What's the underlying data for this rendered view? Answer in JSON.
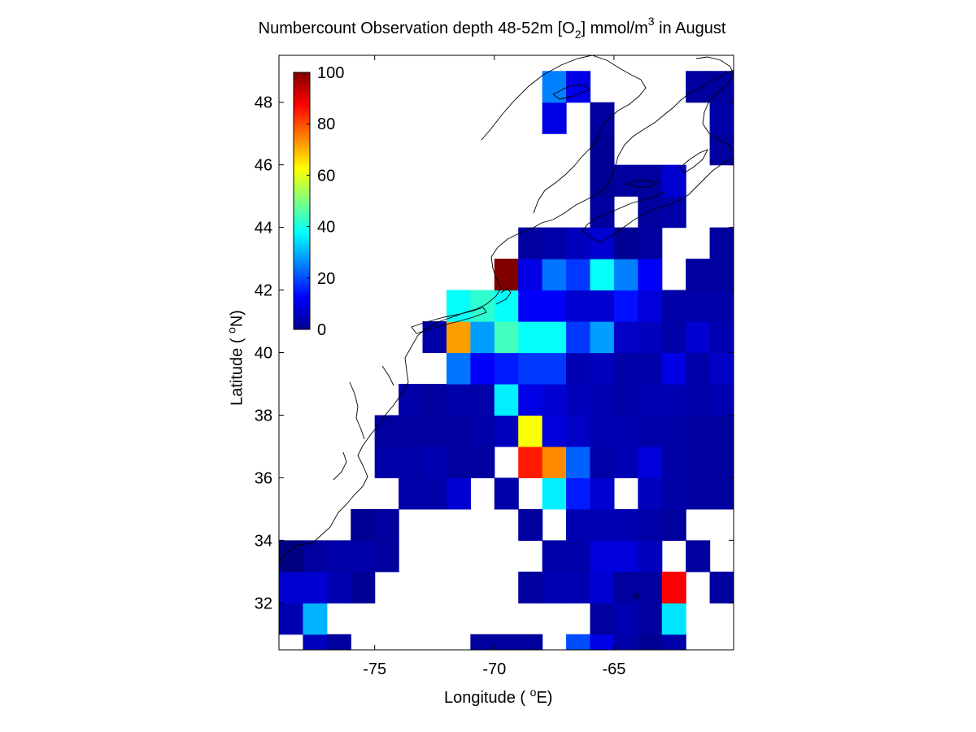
{
  "title": {
    "main": "Numbercount Observation depth 48-52m [O",
    "sub": "2",
    "mid": "] mmol/m",
    "sup": "3",
    "end": " in August"
  },
  "xlabel": {
    "pre": "Longitude ( ",
    "sup": "o",
    "post": "E)"
  },
  "ylabel": {
    "pre": "Latitude ( ",
    "sup": "o",
    "post": "N)"
  },
  "chart_data": {
    "type": "heatmap",
    "title": "Numbercount Observation depth 48-52m [O2] mmol/m3 in August",
    "xlabel": "Longitude ( oE)",
    "ylabel": "Latitude ( oN)",
    "xlim": [
      -79.0,
      -60.0
    ],
    "ylim": [
      30.5,
      49.5
    ],
    "xticks": [
      -75,
      -70,
      -65
    ],
    "xtick_labels": [
      "-75",
      "-70",
      "-65"
    ],
    "yticks": [
      32,
      34,
      36,
      38,
      40,
      42,
      44,
      46,
      48
    ],
    "ytick_labels": [
      "32",
      "34",
      "36",
      "38",
      "40",
      "42",
      "44",
      "46",
      "48"
    ],
    "colormap": "jet",
    "clim": [
      0,
      100
    ],
    "colorbar": {
      "ticks": [
        0,
        20,
        40,
        60,
        80,
        100
      ],
      "tick_labels": [
        "0",
        "20",
        "40",
        "60",
        "80",
        "100"
      ],
      "location": "upper-left inside"
    },
    "grid": false,
    "cell_size_deg": 1,
    "cells": [
      [
        -79,
        31,
        5
      ],
      [
        -79,
        32,
        8
      ],
      [
        -79,
        33,
        0
      ],
      [
        -78,
        30,
        6
      ],
      [
        -78,
        31,
        30
      ],
      [
        -78,
        32,
        8
      ],
      [
        -78,
        33,
        3
      ],
      [
        -77,
        30,
        3
      ],
      [
        -77,
        32,
        5
      ],
      [
        -77,
        33,
        4
      ],
      [
        -76,
        32,
        2
      ],
      [
        -76,
        33,
        4
      ],
      [
        -76,
        34,
        2
      ],
      [
        -75,
        33,
        3
      ],
      [
        -75,
        34,
        3
      ],
      [
        -75,
        36,
        4
      ],
      [
        -75,
        37,
        3
      ],
      [
        -74,
        35,
        4
      ],
      [
        -74,
        36,
        4
      ],
      [
        -74,
        37,
        3
      ],
      [
        -74,
        38,
        4
      ],
      [
        -73,
        35,
        4
      ],
      [
        -73,
        36,
        5
      ],
      [
        -73,
        37,
        3
      ],
      [
        -73,
        38,
        3
      ],
      [
        -73,
        40,
        4
      ],
      [
        -72,
        35,
        8
      ],
      [
        -72,
        36,
        3
      ],
      [
        -72,
        37,
        3
      ],
      [
        -72,
        38,
        4
      ],
      [
        -72,
        39,
        24
      ],
      [
        -72,
        40,
        72
      ],
      [
        -72,
        41,
        38
      ],
      [
        -71,
        30,
        3
      ],
      [
        -71,
        36,
        3
      ],
      [
        -71,
        37,
        4
      ],
      [
        -71,
        38,
        4
      ],
      [
        -71,
        39,
        12
      ],
      [
        -71,
        40,
        28
      ],
      [
        -71,
        41,
        42
      ],
      [
        -70,
        30,
        3
      ],
      [
        -70,
        35,
        4
      ],
      [
        -70,
        37,
        6
      ],
      [
        -70,
        38,
        36
      ],
      [
        -70,
        39,
        15
      ],
      [
        -70,
        40,
        44
      ],
      [
        -70,
        41,
        38
      ],
      [
        -70,
        42,
        100
      ],
      [
        -69,
        30,
        3
      ],
      [
        -69,
        32,
        3
      ],
      [
        -69,
        34,
        3
      ],
      [
        -69,
        36,
        85
      ],
      [
        -69,
        37,
        62
      ],
      [
        -69,
        38,
        10
      ],
      [
        -69,
        39,
        18
      ],
      [
        -69,
        40,
        38
      ],
      [
        -69,
        41,
        12
      ],
      [
        -69,
        42,
        10
      ],
      [
        -69,
        43,
        3
      ],
      [
        -68,
        32,
        5
      ],
      [
        -68,
        33,
        4
      ],
      [
        -68,
        35,
        36
      ],
      [
        -68,
        36,
        74
      ],
      [
        -68,
        37,
        9
      ],
      [
        -68,
        38,
        8
      ],
      [
        -68,
        39,
        18
      ],
      [
        -68,
        40,
        38
      ],
      [
        -68,
        41,
        12
      ],
      [
        -68,
        42,
        24
      ],
      [
        -68,
        43,
        4
      ],
      [
        -68,
        47,
        10
      ],
      [
        -68,
        48,
        25
      ],
      [
        -67,
        30,
        20
      ],
      [
        -67,
        32,
        5
      ],
      [
        -67,
        33,
        4
      ],
      [
        -67,
        34,
        5
      ],
      [
        -67,
        35,
        15
      ],
      [
        -67,
        36,
        22
      ],
      [
        -67,
        37,
        7
      ],
      [
        -67,
        38,
        6
      ],
      [
        -67,
        39,
        5
      ],
      [
        -67,
        40,
        18
      ],
      [
        -67,
        41,
        8
      ],
      [
        -67,
        42,
        18
      ],
      [
        -67,
        43,
        6
      ],
      [
        -67,
        48,
        10
      ],
      [
        -66,
        30,
        10
      ],
      [
        -66,
        31,
        3
      ],
      [
        -66,
        32,
        8
      ],
      [
        -66,
        33,
        9
      ],
      [
        -66,
        34,
        5
      ],
      [
        -66,
        35,
        8
      ],
      [
        -66,
        36,
        4
      ],
      [
        -66,
        37,
        5
      ],
      [
        -66,
        38,
        5
      ],
      [
        -66,
        39,
        6
      ],
      [
        -66,
        40,
        28
      ],
      [
        -66,
        41,
        8
      ],
      [
        -66,
        42,
        38
      ],
      [
        -66,
        43,
        8
      ],
      [
        -66,
        44,
        3
      ],
      [
        -66,
        45,
        2
      ],
      [
        -66,
        46,
        2
      ],
      [
        -66,
        47,
        3
      ],
      [
        -65,
        30,
        4
      ],
      [
        -65,
        31,
        5
      ],
      [
        -65,
        32,
        3
      ],
      [
        -65,
        33,
        9
      ],
      [
        -65,
        34,
        5
      ],
      [
        -65,
        36,
        5
      ],
      [
        -65,
        37,
        5
      ],
      [
        -65,
        38,
        4
      ],
      [
        -65,
        39,
        4
      ],
      [
        -65,
        40,
        7
      ],
      [
        -65,
        41,
        14
      ],
      [
        -65,
        42,
        25
      ],
      [
        -65,
        43,
        2
      ],
      [
        -65,
        45,
        3
      ],
      [
        -64,
        30,
        2
      ],
      [
        -64,
        31,
        3
      ],
      [
        -64,
        32,
        3
      ],
      [
        -64,
        33,
        6
      ],
      [
        -64,
        34,
        4
      ],
      [
        -64,
        35,
        6
      ],
      [
        -64,
        36,
        9
      ],
      [
        -64,
        37,
        4
      ],
      [
        -64,
        38,
        5
      ],
      [
        -64,
        39,
        4
      ],
      [
        -64,
        40,
        6
      ],
      [
        -64,
        41,
        9
      ],
      [
        -64,
        42,
        12
      ],
      [
        -64,
        43,
        3
      ],
      [
        -64,
        44,
        3
      ],
      [
        -64,
        45,
        3
      ],
      [
        -63,
        30,
        4
      ],
      [
        -63,
        31,
        35
      ],
      [
        -63,
        32,
        88
      ],
      [
        -63,
        34,
        3
      ],
      [
        -63,
        35,
        4
      ],
      [
        -63,
        36,
        4
      ],
      [
        -63,
        37,
        4
      ],
      [
        -63,
        38,
        5
      ],
      [
        -63,
        39,
        10
      ],
      [
        -63,
        40,
        4
      ],
      [
        -63,
        41,
        4
      ],
      [
        -63,
        44,
        4
      ],
      [
        -63,
        45,
        8
      ],
      [
        -62,
        33,
        3
      ],
      [
        -62,
        35,
        3
      ],
      [
        -62,
        36,
        3
      ],
      [
        -62,
        37,
        3
      ],
      [
        -62,
        38,
        4
      ],
      [
        -62,
        39,
        4
      ],
      [
        -62,
        40,
        8
      ],
      [
        -62,
        41,
        4
      ],
      [
        -62,
        42,
        3
      ],
      [
        -62,
        48,
        3
      ],
      [
        -61,
        32,
        3
      ],
      [
        -61,
        35,
        3
      ],
      [
        -61,
        36,
        3
      ],
      [
        -61,
        37,
        3
      ],
      [
        -61,
        38,
        5
      ],
      [
        -61,
        39,
        7
      ],
      [
        -61,
        40,
        5
      ],
      [
        -61,
        41,
        4
      ],
      [
        -61,
        42,
        3
      ],
      [
        -61,
        43,
        3
      ],
      [
        -61,
        46,
        3
      ],
      [
        -61,
        47,
        4
      ],
      [
        -61,
        48,
        3
      ],
      [
        -60,
        30,
        3
      ],
      [
        -60,
        32,
        3
      ],
      [
        -60,
        35,
        3
      ],
      [
        -60,
        36,
        3
      ],
      [
        -60,
        37,
        4
      ],
      [
        -60,
        38,
        4
      ],
      [
        -60,
        39,
        6
      ],
      [
        -60,
        40,
        5
      ],
      [
        -60,
        41,
        4
      ],
      [
        -60,
        42,
        3
      ],
      [
        -60,
        43,
        3
      ],
      [
        -60,
        46,
        5
      ],
      [
        -60,
        47,
        7
      ],
      [
        -60,
        48,
        4
      ],
      [
        -60,
        49,
        3
      ]
    ]
  }
}
